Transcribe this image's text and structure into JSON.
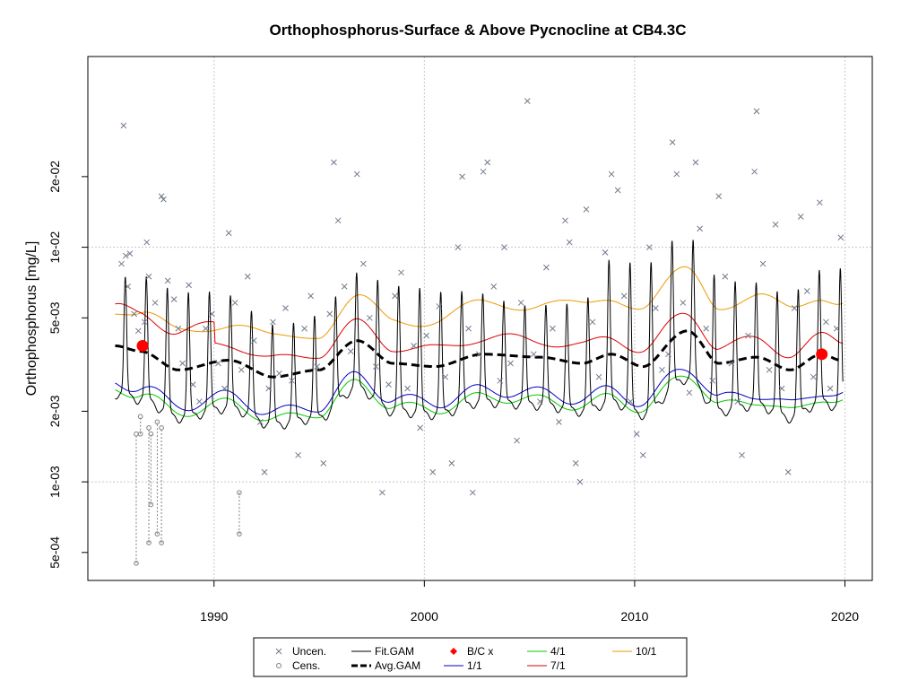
{
  "chart_data": {
    "type": "scatter",
    "title": "Orthophosphorus-Surface & Above Pycnocline at CB4.3C",
    "xlabel": "",
    "ylabel": "Orthophosphorus [mg/L]",
    "y_scale": "log",
    "xlim": [
      1984.0,
      2021.3
    ],
    "ylim": [
      0.00038,
      0.065
    ],
    "grid": true,
    "x_ticks": [
      {
        "value": 1990,
        "label": "1990"
      },
      {
        "value": 2000,
        "label": "2000"
      },
      {
        "value": 2010,
        "label": "2010"
      },
      {
        "value": 2020,
        "label": "2020"
      }
    ],
    "y_ticks": [
      {
        "value": 0.0005,
        "label": "5e-04"
      },
      {
        "value": 0.001,
        "label": "1e-03"
      },
      {
        "value": 0.002,
        "label": "2e-03"
      },
      {
        "value": 0.005,
        "label": "5e-03"
      },
      {
        "value": 0.01,
        "label": "1e-02"
      },
      {
        "value": 0.02,
        "label": "2e-02"
      }
    ],
    "legend_position": "bottom-center",
    "legend": [
      {
        "label": "Uncen.",
        "symbol": "x",
        "color": "#707a8c"
      },
      {
        "label": "Cens.",
        "symbol": "o",
        "color": "#808080"
      },
      {
        "label": "Fit.GAM",
        "symbol": "line",
        "color": "#000000"
      },
      {
        "label": "Avg.GAM",
        "symbol": "dash",
        "color": "#000000"
      },
      {
        "label": "B/C x",
        "symbol": "diamond",
        "color": "#ff0000"
      },
      {
        "label": "1/1",
        "symbol": "line",
        "color": "#0000cc"
      },
      {
        "label": "4/1",
        "symbol": "line",
        "color": "#00cc00"
      },
      {
        "label": "7/1",
        "symbol": "line",
        "color": "#dd0000"
      },
      {
        "label": "10/1",
        "symbol": "line",
        "color": "#ee9900"
      }
    ],
    "colors": {
      "uncensored": "#707a8c",
      "censored": "#808080",
      "fit_gam": "#000000",
      "avg_gam": "#000000",
      "bc_points": "#ff0000",
      "day_1_1": "#0000cc",
      "day_4_1": "#00cc00",
      "day_7_1": "#dd0000",
      "day_10_1": "#ee9900",
      "grid": "#c8c8c8"
    },
    "baseline_current_points": [
      {
        "x": 1986.6,
        "y": 0.0038
      },
      {
        "x": 2018.9,
        "y": 0.0035
      }
    ],
    "uncensored_points": [
      {
        "x": 1985.7,
        "y": 0.033
      },
      {
        "x": 1985.6,
        "y": 0.0085
      },
      {
        "x": 1985.8,
        "y": 0.0092
      },
      {
        "x": 1986.0,
        "y": 0.0094
      },
      {
        "x": 1985.9,
        "y": 0.0068
      },
      {
        "x": 1986.2,
        "y": 0.0052
      },
      {
        "x": 1986.4,
        "y": 0.0044
      },
      {
        "x": 1986.7,
        "y": 0.0048
      },
      {
        "x": 1986.8,
        "y": 0.0105
      },
      {
        "x": 1986.9,
        "y": 0.0075
      },
      {
        "x": 1987.2,
        "y": 0.0058
      },
      {
        "x": 1987.5,
        "y": 0.0165
      },
      {
        "x": 1987.6,
        "y": 0.016
      },
      {
        "x": 1987.8,
        "y": 0.0072
      },
      {
        "x": 1988.1,
        "y": 0.006
      },
      {
        "x": 1988.3,
        "y": 0.0045
      },
      {
        "x": 1988.5,
        "y": 0.0032
      },
      {
        "x": 1988.8,
        "y": 0.0069
      },
      {
        "x": 1989.0,
        "y": 0.0026
      },
      {
        "x": 1989.3,
        "y": 0.0022
      },
      {
        "x": 1989.6,
        "y": 0.0045
      },
      {
        "x": 1989.9,
        "y": 0.0052
      },
      {
        "x": 1990.2,
        "y": 0.0032
      },
      {
        "x": 1990.5,
        "y": 0.0025
      },
      {
        "x": 1990.7,
        "y": 0.0115
      },
      {
        "x": 1991.0,
        "y": 0.0058
      },
      {
        "x": 1991.3,
        "y": 0.003
      },
      {
        "x": 1991.6,
        "y": 0.0075
      },
      {
        "x": 1991.9,
        "y": 0.004
      },
      {
        "x": 1992.2,
        "y": 0.0018
      },
      {
        "x": 1992.4,
        "y": 0.0011
      },
      {
        "x": 1992.6,
        "y": 0.0025
      },
      {
        "x": 1992.8,
        "y": 0.0048
      },
      {
        "x": 1993.1,
        "y": 0.0029
      },
      {
        "x": 1993.4,
        "y": 0.0055
      },
      {
        "x": 1993.7,
        "y": 0.0027
      },
      {
        "x": 1994.0,
        "y": 0.0013
      },
      {
        "x": 1994.3,
        "y": 0.0045
      },
      {
        "x": 1994.6,
        "y": 0.0062
      },
      {
        "x": 1994.9,
        "y": 0.0031
      },
      {
        "x": 1995.2,
        "y": 0.0012
      },
      {
        "x": 1995.5,
        "y": 0.0052
      },
      {
        "x": 1995.7,
        "y": 0.023
      },
      {
        "x": 1995.9,
        "y": 0.013
      },
      {
        "x": 1996.2,
        "y": 0.0068
      },
      {
        "x": 1996.5,
        "y": 0.0036
      },
      {
        "x": 1996.8,
        "y": 0.0205
      },
      {
        "x": 1997.1,
        "y": 0.0085
      },
      {
        "x": 1997.4,
        "y": 0.005
      },
      {
        "x": 1997.7,
        "y": 0.0031
      },
      {
        "x": 1998.0,
        "y": 0.0009
      },
      {
        "x": 1998.3,
        "y": 0.0026
      },
      {
        "x": 1998.6,
        "y": 0.0062
      },
      {
        "x": 1998.9,
        "y": 0.0078
      },
      {
        "x": 1999.2,
        "y": 0.0025
      },
      {
        "x": 1999.5,
        "y": 0.0038
      },
      {
        "x": 1999.8,
        "y": 0.0017
      },
      {
        "x": 2000.1,
        "y": 0.0042
      },
      {
        "x": 2000.4,
        "y": 0.0011
      },
      {
        "x": 2000.7,
        "y": 0.0056
      },
      {
        "x": 2001.0,
        "y": 0.0028
      },
      {
        "x": 2001.3,
        "y": 0.0012
      },
      {
        "x": 2001.6,
        "y": 0.01
      },
      {
        "x": 2001.8,
        "y": 0.02
      },
      {
        "x": 2002.1,
        "y": 0.0045
      },
      {
        "x": 2002.3,
        "y": 0.0009
      },
      {
        "x": 2002.6,
        "y": 0.0035
      },
      {
        "x": 2002.8,
        "y": 0.021
      },
      {
        "x": 2003.0,
        "y": 0.023
      },
      {
        "x": 2003.3,
        "y": 0.0068
      },
      {
        "x": 2003.6,
        "y": 0.0027
      },
      {
        "x": 2003.8,
        "y": 0.01
      },
      {
        "x": 2004.1,
        "y": 0.0032
      },
      {
        "x": 2004.4,
        "y": 0.0015
      },
      {
        "x": 2004.6,
        "y": 0.0058
      },
      {
        "x": 2004.9,
        "y": 0.042
      },
      {
        "x": 2005.2,
        "y": 0.0035
      },
      {
        "x": 2005.5,
        "y": 0.0022
      },
      {
        "x": 2005.8,
        "y": 0.0082
      },
      {
        "x": 2006.1,
        "y": 0.0045
      },
      {
        "x": 2006.4,
        "y": 0.0018
      },
      {
        "x": 2006.7,
        "y": 0.013
      },
      {
        "x": 2006.9,
        "y": 0.0105
      },
      {
        "x": 2007.2,
        "y": 0.0012
      },
      {
        "x": 2007.4,
        "y": 0.001
      },
      {
        "x": 2007.7,
        "y": 0.0145
      },
      {
        "x": 2008.0,
        "y": 0.0048
      },
      {
        "x": 2008.3,
        "y": 0.0028
      },
      {
        "x": 2008.6,
        "y": 0.0095
      },
      {
        "x": 2008.9,
        "y": 0.0205
      },
      {
        "x": 2009.2,
        "y": 0.0175
      },
      {
        "x": 2009.5,
        "y": 0.0062
      },
      {
        "x": 2009.8,
        "y": 0.0022
      },
      {
        "x": 2010.1,
        "y": 0.0016
      },
      {
        "x": 2010.4,
        "y": 0.0013
      },
      {
        "x": 2010.7,
        "y": 0.01
      },
      {
        "x": 2011.0,
        "y": 0.0055
      },
      {
        "x": 2011.3,
        "y": 0.003
      },
      {
        "x": 2011.6,
        "y": 0.0035
      },
      {
        "x": 2011.8,
        "y": 0.028
      },
      {
        "x": 2012.0,
        "y": 0.0205
      },
      {
        "x": 2012.3,
        "y": 0.0058
      },
      {
        "x": 2012.6,
        "y": 0.0024
      },
      {
        "x": 2012.9,
        "y": 0.023
      },
      {
        "x": 2013.1,
        "y": 0.012
      },
      {
        "x": 2013.4,
        "y": 0.0045
      },
      {
        "x": 2013.7,
        "y": 0.0027
      },
      {
        "x": 2014.0,
        "y": 0.0165
      },
      {
        "x": 2014.3,
        "y": 0.0075
      },
      {
        "x": 2014.6,
        "y": 0.0032
      },
      {
        "x": 2014.9,
        "y": 0.0022
      },
      {
        "x": 2015.1,
        "y": 0.0013
      },
      {
        "x": 2015.4,
        "y": 0.0042
      },
      {
        "x": 2015.7,
        "y": 0.021
      },
      {
        "x": 2015.8,
        "y": 0.038
      },
      {
        "x": 2016.1,
        "y": 0.0085
      },
      {
        "x": 2016.4,
        "y": 0.003
      },
      {
        "x": 2016.7,
        "y": 0.0125
      },
      {
        "x": 2017.0,
        "y": 0.0025
      },
      {
        "x": 2017.3,
        "y": 0.0011
      },
      {
        "x": 2017.6,
        "y": 0.0055
      },
      {
        "x": 2017.9,
        "y": 0.0135
      },
      {
        "x": 2018.2,
        "y": 0.0065
      },
      {
        "x": 2018.5,
        "y": 0.0028
      },
      {
        "x": 2018.8,
        "y": 0.0155
      },
      {
        "x": 2019.1,
        "y": 0.0048
      },
      {
        "x": 2019.3,
        "y": 0.0025
      },
      {
        "x": 2019.6,
        "y": 0.0045
      },
      {
        "x": 2019.8,
        "y": 0.011
      }
    ],
    "censored_points": [
      {
        "x": 1986.3,
        "y": 0.00045,
        "upper": 0.0016
      },
      {
        "x": 1986.5,
        "y": 0.0016,
        "upper": 0.0019
      },
      {
        "x": 1986.9,
        "y": 0.00055,
        "upper": 0.0017
      },
      {
        "x": 1987.0,
        "y": 0.0008,
        "upper": 0.0016
      },
      {
        "x": 1987.3,
        "y": 0.0006,
        "upper": 0.0018
      },
      {
        "x": 1987.5,
        "y": 0.00055,
        "upper": 0.0017
      },
      {
        "x": 1991.2,
        "y": 0.0006,
        "upper": 0.0009
      }
    ]
  }
}
